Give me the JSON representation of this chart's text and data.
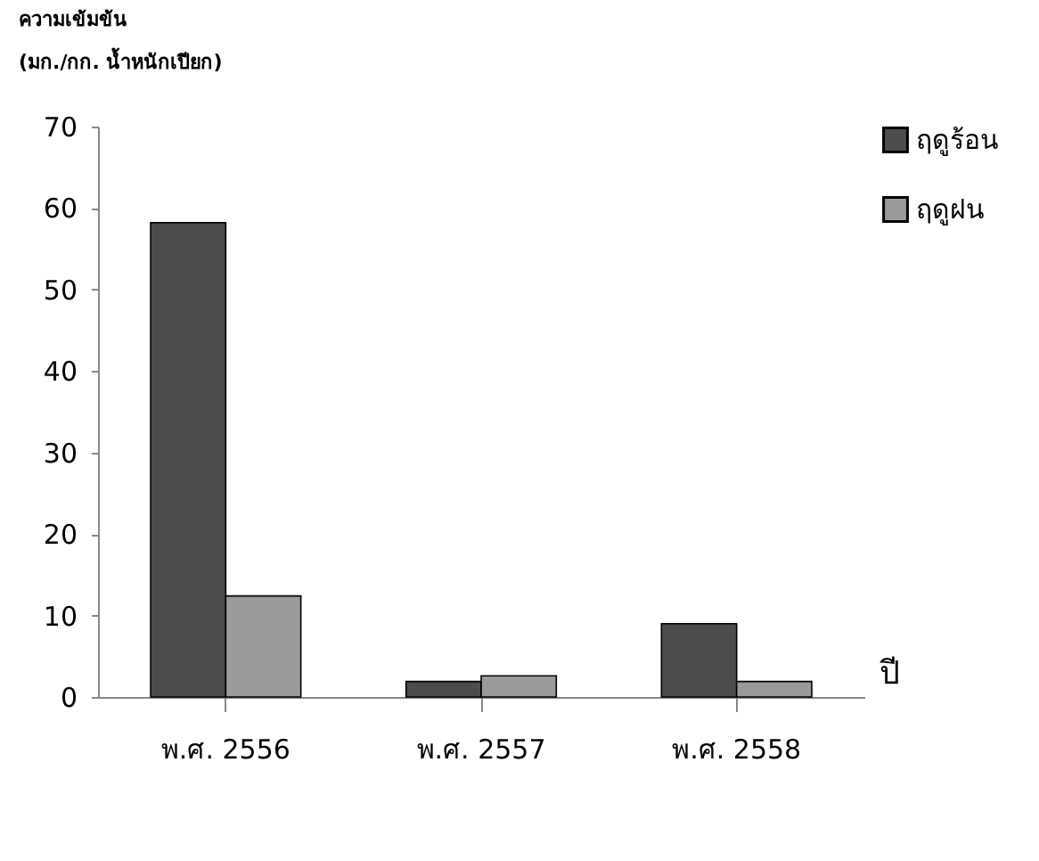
{
  "chart_data": {
    "type": "bar",
    "ylabel": "ความเข้มข้น\n(มก./กก. น้ำหนักเปียก)",
    "xlabel": "ปี",
    "categories": [
      "พ.ศ. 2556",
      "พ.ศ. 2557",
      "พ.ศ. 2558"
    ],
    "series": [
      {
        "name": "ฤดูร้อน",
        "color": "#4d4d4d",
        "values": [
          58.2,
          1.9,
          9.0
        ]
      },
      {
        "name": "ฤดูฝน",
        "color": "#9a9a9a",
        "values": [
          12.4,
          2.6,
          1.9
        ]
      }
    ],
    "ylim": [
      0,
      70
    ],
    "yticks": [
      0,
      10,
      20,
      30,
      40,
      50,
      60,
      70
    ],
    "grid": false,
    "legend": "right"
  }
}
